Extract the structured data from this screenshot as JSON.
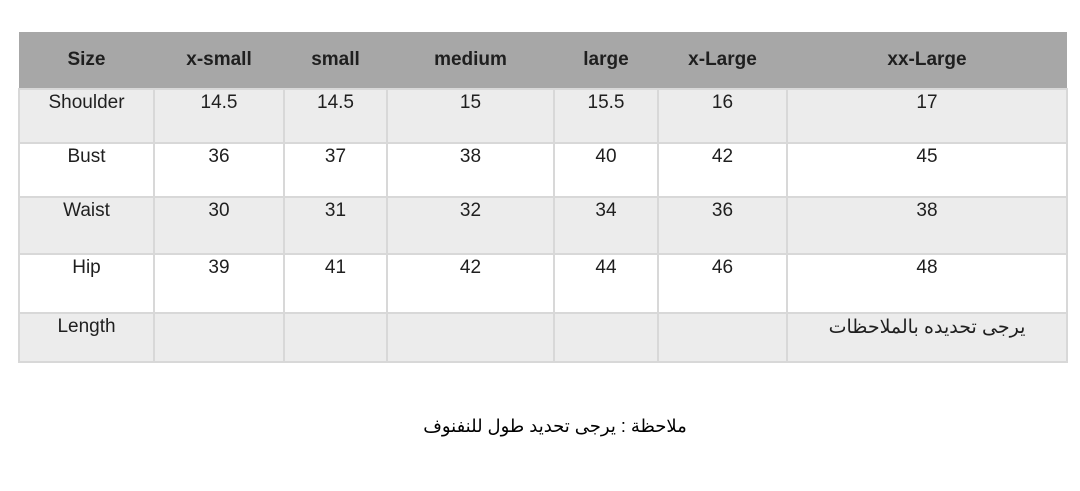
{
  "table": {
    "columns": [
      "Size",
      "x-small",
      "small",
      "medium",
      "large",
      "x-Large",
      "xx-Large"
    ],
    "rows": [
      {
        "label": "Shoulder",
        "values": [
          "14.5",
          "14.5",
          "15",
          "15.5",
          "16",
          "17"
        ]
      },
      {
        "label": "Bust",
        "values": [
          "36",
          "37",
          "38",
          "40",
          "42",
          "45"
        ]
      },
      {
        "label": "Waist",
        "values": [
          "30",
          "31",
          "32",
          "34",
          "36",
          "38"
        ]
      },
      {
        "label": "Hip",
        "values": [
          "39",
          "41",
          "42",
          "44",
          "46",
          "48"
        ]
      },
      {
        "label": "Length",
        "values": [
          "",
          "",
          "",
          "",
          "",
          "يرجى تحديده بالملاحظات"
        ]
      }
    ]
  },
  "note": "ملاحظة : يرجى تحديد طول للنفنوف",
  "colors": {
    "header_bg": "#a7a7a7",
    "header_text": "#ffffff",
    "row_alt_bg": "#ececec",
    "row_bg": "#ffffff",
    "border": "#d8d8d8",
    "text": "#1f1f1f"
  }
}
